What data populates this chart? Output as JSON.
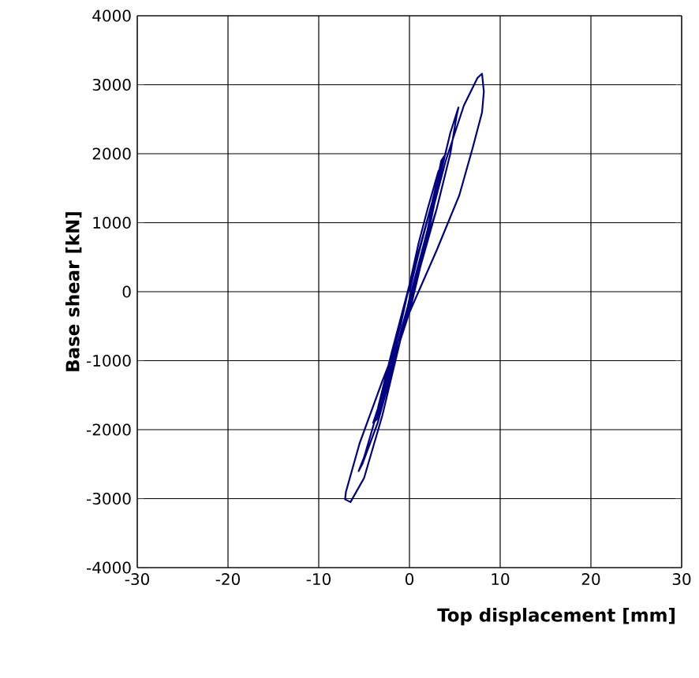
{
  "chart_data": {
    "type": "line",
    "xlabel": "Top displacement [mm]",
    "ylabel": "Base shear [kN]",
    "xlim": [
      -30,
      30
    ],
    "ylim": [
      -4000,
      4000
    ],
    "xticks": [
      -30,
      -20,
      -10,
      0,
      10,
      20,
      30
    ],
    "yticks": [
      -4000,
      -3000,
      -2000,
      -1000,
      0,
      1000,
      2000,
      3000,
      4000
    ],
    "grid": true,
    "marker": "none",
    "line_style": "solid",
    "series": [
      {
        "color": "#000080",
        "x": [
          0,
          1,
          2,
          3,
          3.5,
          3.2,
          2,
          1,
          -1,
          -2.5,
          -3,
          -2.6,
          -1,
          0,
          2,
          3.5,
          4,
          3.6,
          2.5,
          0,
          -2,
          -3.5,
          -4,
          -3.6,
          -2,
          0,
          2,
          3.5,
          4.5,
          5.4,
          5.2,
          4.5,
          3,
          1,
          -1,
          -3,
          -5,
          -5.6,
          -5.2,
          -3.5,
          -1,
          0,
          2,
          4,
          6,
          7.5,
          8,
          8.2,
          8,
          7,
          5.5,
          3,
          0,
          -3,
          -5.5,
          -7,
          -7.1,
          -6.5,
          -5,
          -3,
          -1,
          0,
          1.5,
          3
        ],
        "values": [
          0,
          550,
          1050,
          1500,
          1800,
          1750,
          1200,
          700,
          -500,
          -1200,
          -1500,
          -1450,
          -700,
          -200,
          900,
          1900,
          2000,
          1900,
          1300,
          100,
          -900,
          -1700,
          -1900,
          -1850,
          -1100,
          -300,
          800,
          1750,
          2300,
          2670,
          2550,
          2000,
          1200,
          350,
          -600,
          -1500,
          -2400,
          -2600,
          -2500,
          -1900,
          -700,
          -100,
          900,
          1900,
          2700,
          3100,
          3160,
          2900,
          2600,
          2100,
          1400,
          600,
          -300,
          -1300,
          -2200,
          -2900,
          -3010,
          -3050,
          -2700,
          -1800,
          -700,
          -200,
          500,
          1200
        ]
      }
    ]
  }
}
